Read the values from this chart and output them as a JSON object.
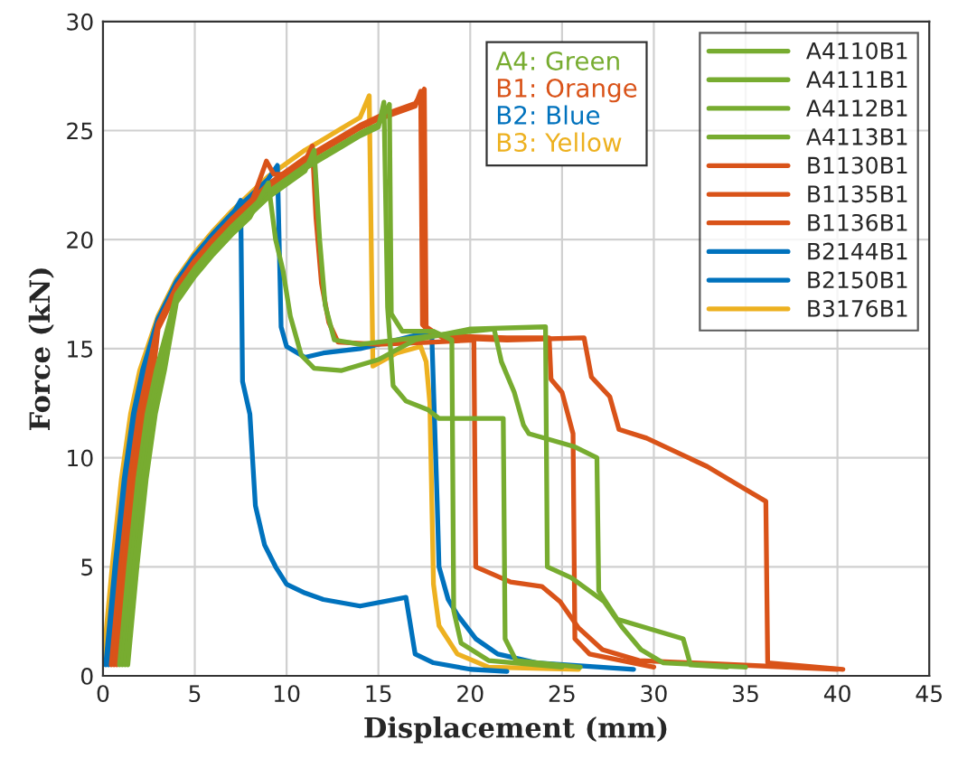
{
  "chart_data": {
    "type": "line",
    "xlabel": "Displacement (mm)",
    "ylabel": "Force (kN)",
    "xlim": [
      0,
      45
    ],
    "xticks": [
      0,
      5,
      10,
      15,
      20,
      25,
      30,
      35,
      40,
      45
    ],
    "ylim": [
      0,
      30
    ],
    "yticks": [
      0,
      5,
      10,
      15,
      20,
      25,
      30
    ],
    "grid": true,
    "legend": "top right",
    "line_style": "solid",
    "annotations": [
      "A4: Green",
      "B1: Orange",
      "B2: Blue",
      "B3: Yellow"
    ],
    "series": [
      {
        "name": "A4110B1",
        "color": "#77ac30",
        "x": [
          1.35,
          1.85,
          2.35,
          2.85,
          3.35,
          4,
          5,
          6,
          7,
          8,
          9,
          9.4,
          9.8,
          10.2,
          10.8,
          11.5,
          13,
          15,
          17,
          20,
          24.1,
          24.2,
          25.5,
          27.3,
          28.3,
          29.3,
          30.5,
          35
        ],
        "values": [
          0.5,
          5,
          9,
          12,
          14,
          17.12,
          18.32,
          19.32,
          20.22,
          21.02,
          22.6,
          20,
          18.6,
          16.5,
          14.7,
          14.1,
          14,
          14.5,
          15.4,
          15.9,
          16,
          5,
          4.5,
          3.4,
          2.2,
          1.2,
          0.6,
          0.4
        ]
      },
      {
        "name": "A4111B1",
        "color": "#77ac30",
        "x": [
          1.2,
          1.7,
          2.2,
          2.7,
          3.2,
          4,
          5,
          6,
          7,
          8,
          9,
          10,
          11,
          11.5,
          11.8,
          12.1,
          12.6,
          14,
          17,
          19,
          21.3,
          21.7,
          22.4,
          22.9,
          23.2,
          25.7,
          26.9,
          27,
          27.3,
          28,
          31.6,
          32,
          34
        ],
        "values": [
          0.5,
          5,
          9,
          12,
          14,
          17.24,
          18.44,
          19.44,
          20.34,
          21.14,
          21.94,
          22.54,
          23.14,
          24.1,
          20,
          17,
          15.4,
          15.2,
          15.5,
          15.7,
          15.9,
          14.4,
          13,
          11.5,
          11.1,
          10.5,
          10,
          3.9,
          3.5,
          2.6,
          1.7,
          0.5,
          0.4
        ]
      },
      {
        "name": "A4112B1",
        "color": "#77ac30",
        "x": [
          1.05,
          1.55,
          2.05,
          2.55,
          3.05,
          4,
          5,
          6,
          7,
          8,
          9,
          10,
          11,
          12,
          13,
          14,
          15,
          15.3,
          15.5,
          15.8,
          16.5,
          17.7,
          18.3,
          21.8,
          21.9,
          22.5,
          26
        ],
        "values": [
          0.5,
          5,
          9,
          12,
          14,
          17.36,
          18.56,
          19.56,
          20.46,
          21.26,
          22.06,
          22.66,
          23.26,
          23.76,
          24.26,
          24.76,
          25.16,
          26.3,
          16.9,
          13.3,
          12.6,
          12.2,
          11.8,
          11.8,
          1.7,
          0.7,
          0.4
        ]
      },
      {
        "name": "A4113B1",
        "color": "#77ac30",
        "x": [
          0.9,
          1.4,
          1.9,
          2.4,
          2.9,
          4,
          5,
          6,
          7,
          8,
          9,
          10,
          11,
          12,
          13,
          14,
          15,
          15.6,
          15.7,
          16.3,
          18,
          19,
          19.1,
          19.5,
          21,
          25
        ],
        "values": [
          0.5,
          5,
          9,
          12,
          14,
          17.48,
          18.68,
          19.68,
          20.58,
          21.38,
          22.18,
          22.78,
          23.38,
          23.88,
          24.38,
          24.88,
          25.28,
          26.2,
          16.6,
          15.8,
          15.8,
          15.4,
          3,
          1.5,
          0.7,
          0.4
        ]
      },
      {
        "name": "B1130B1",
        "color": "#d95319",
        "x": [
          0.75,
          1.25,
          1.75,
          2.25,
          2.75,
          3,
          4,
          5,
          6,
          7,
          8,
          8.9,
          9.3,
          10,
          11,
          11.4,
          11.6,
          11.9,
          12.3,
          12.8,
          15,
          18,
          20.2,
          20.3,
          22.2,
          23.9,
          24.9,
          25.9,
          27.2,
          29.2,
          40
        ],
        "values": [
          0.5,
          5,
          9,
          12,
          14,
          15.9,
          17.6,
          18.8,
          19.8,
          20.7,
          21.5,
          23.6,
          23,
          23,
          23.6,
          24.3,
          21,
          18,
          16.2,
          15.3,
          15.2,
          15.3,
          15.4,
          5,
          4.3,
          4.1,
          3.4,
          2.2,
          1.2,
          0.7,
          0.3
        ]
      },
      {
        "name": "B1135B1",
        "color": "#d95319",
        "x": [
          0.6,
          1.1,
          1.6,
          2.1,
          2.6,
          3,
          4,
          5,
          6,
          7,
          8,
          9,
          10,
          11,
          12,
          13,
          14,
          15,
          16,
          17,
          17.3,
          17.4,
          18,
          22,
          24.3,
          24.4,
          25,
          25.6,
          25.7,
          26.5,
          30
        ],
        "values": [
          0.5,
          5,
          9,
          12,
          14,
          16.02,
          17.72,
          18.92,
          19.92,
          20.82,
          21.62,
          22.42,
          23.02,
          23.62,
          24.12,
          24.62,
          25.12,
          25.52,
          25.82,
          26.12,
          26.8,
          16.1,
          15.6,
          15.5,
          15.5,
          13.6,
          13,
          11.1,
          1.7,
          1,
          0.4
        ]
      },
      {
        "name": "B1136B1",
        "color": "#d95319",
        "x": [
          0.45,
          0.95,
          1.45,
          1.95,
          2.45,
          3,
          4,
          5,
          6,
          7,
          8,
          9,
          10,
          11,
          12,
          13,
          14,
          15,
          16,
          17,
          17.5,
          17.6,
          18.5,
          22,
          26.2,
          26.6,
          27.6,
          28.1,
          29.6,
          32.9,
          34.9,
          36.1,
          36.2,
          40.3
        ],
        "values": [
          0.5,
          5,
          9,
          12,
          14,
          16.14,
          17.84,
          19.04,
          20.04,
          20.94,
          21.74,
          22.54,
          23.14,
          23.74,
          24.24,
          24.74,
          25.24,
          25.64,
          25.94,
          26.24,
          26.9,
          16,
          15.5,
          15.4,
          15.5,
          13.7,
          12.8,
          11.3,
          10.9,
          9.6,
          8.6,
          8,
          0.6,
          0.3
        ]
      },
      {
        "name": "B2144B1",
        "color": "#0072bd",
        "x": [
          0.3,
          0.8,
          1.3,
          1.8,
          2.3,
          3,
          4,
          5,
          6,
          7,
          7.5,
          7.6,
          8,
          8.3,
          8.8,
          9.4,
          10,
          11,
          12,
          14,
          16.5,
          17,
          18,
          20,
          22
        ],
        "values": [
          0.5,
          5,
          9,
          12,
          14,
          16.26,
          17.96,
          19.16,
          20.16,
          21.06,
          21.8,
          13.5,
          12,
          7.8,
          6,
          5,
          4.2,
          3.8,
          3.5,
          3.2,
          3.6,
          1,
          0.6,
          0.3,
          0.2
        ]
      },
      {
        "name": "B2150B1",
        "color": "#0072bd",
        "x": [
          0.15,
          0.65,
          1.15,
          1.65,
          2.15,
          3,
          4,
          5,
          6,
          7,
          8,
          9,
          9.5,
          9.7,
          10,
          11,
          12,
          14,
          16,
          17.9,
          18.2,
          18.3,
          18.8,
          19.3,
          20.3,
          21.5,
          23.6,
          28.9
        ],
        "values": [
          0.5,
          5,
          9,
          12,
          14,
          16.38,
          18.08,
          19.28,
          20.28,
          21.18,
          21.98,
          22.78,
          23.4,
          16,
          15.1,
          14.6,
          14.8,
          15,
          15.4,
          15.8,
          8,
          5,
          3.5,
          2.8,
          1.7,
          1,
          0.6,
          0.3
        ]
      },
      {
        "name": "B3176B1",
        "color": "#edb120",
        "x": [
          0,
          0.5,
          1,
          1.5,
          2,
          3,
          4,
          5,
          6,
          7,
          8,
          9,
          10,
          11,
          12,
          13,
          14,
          14.5,
          14.7,
          16,
          17.3,
          17.6,
          17.8,
          18,
          18.3,
          19.3,
          21,
          25.9
        ],
        "values": [
          0.5,
          5,
          9,
          12,
          14,
          16.5,
          18.2,
          19.4,
          20.4,
          21.3,
          22.1,
          22.9,
          23.5,
          24.1,
          24.6,
          25.1,
          25.6,
          26.6,
          14.2,
          14.8,
          15.1,
          14.4,
          12.5,
          4.2,
          2.3,
          1,
          0.4,
          0.3
        ]
      }
    ]
  }
}
